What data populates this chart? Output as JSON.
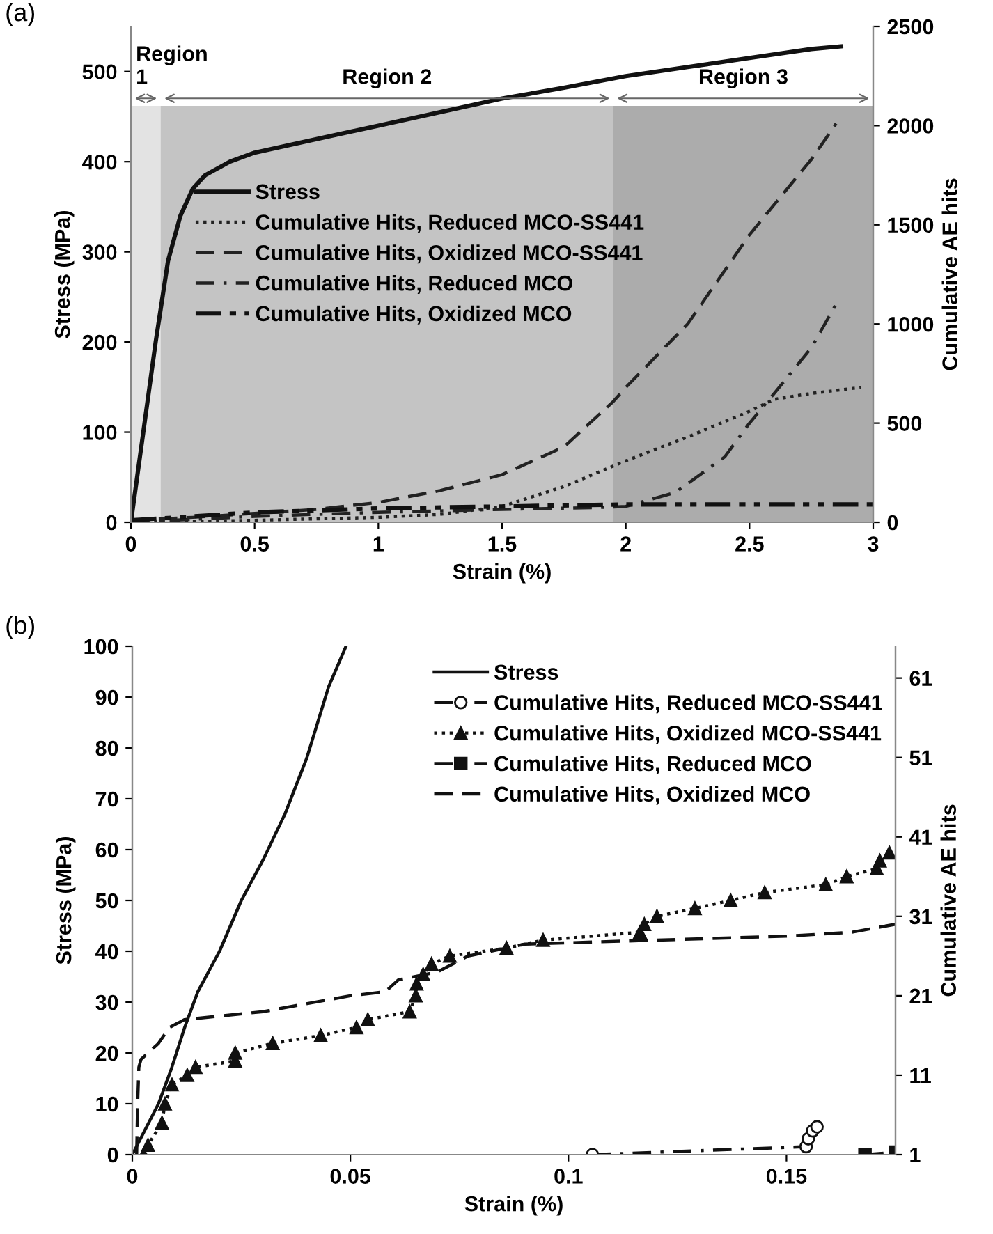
{
  "chart_data": [
    {
      "type": "line",
      "title": "(a)",
      "xlabel": "Strain (%)",
      "ylabel": "Stress (MPa)",
      "y2label": "Cumulative AE hits",
      "xlim": [
        0,
        3
      ],
      "xticks": [
        0,
        0.5,
        1,
        1.5,
        2,
        2.5,
        3
      ],
      "ylim": [
        0,
        550
      ],
      "yticks": [
        0,
        100,
        200,
        300,
        400,
        500
      ],
      "y2lim": [
        0,
        2500
      ],
      "y2ticks": [
        0,
        500,
        1000,
        1500,
        2000,
        2500
      ],
      "grid": false,
      "legend": "center left",
      "bands": [
        {
          "axis": "x",
          "from": 0,
          "to": 0.12,
          "label": "Region\n1",
          "color": "#e3e3e3"
        },
        {
          "axis": "x",
          "from": 0.12,
          "to": 1.95,
          "label": "Region 2",
          "color": "#c4c4c4"
        },
        {
          "axis": "x",
          "from": 1.95,
          "to": 3,
          "label": "Region 3",
          "color": "#acacac"
        }
      ],
      "series": [
        {
          "name": "Stress",
          "color": "#111111",
          "line_style": "solid",
          "marker": "none",
          "x": [
            0,
            0.05,
            0.1,
            0.15,
            0.2,
            0.25,
            0.3,
            0.4,
            0.5,
            0.75,
            1,
            1.25,
            1.5,
            1.75,
            2,
            2.25,
            2.5,
            2.75,
            2.87
          ],
          "values": [
            0,
            100,
            200,
            290,
            340,
            370,
            385,
            400,
            410,
            425,
            440,
            455,
            470,
            482,
            495,
            505,
            515,
            525,
            528
          ]
        },
        {
          "name": "Cumulative Hits, Reduced MCO-SS441",
          "color": "#222222",
          "line_style": "dotted",
          "marker": "none",
          "axis": "y2",
          "x": [
            0,
            0.5,
            1,
            1.25,
            1.5,
            1.75,
            2,
            2.25,
            2.5,
            2.6,
            2.75,
            2.95
          ],
          "values": [
            0,
            10,
            25,
            40,
            80,
            180,
            310,
            430,
            560,
            620,
            650,
            680
          ]
        },
        {
          "name": "Cumulative Hits, Oxidized MCO-SS441",
          "color": "#222222",
          "line_style": "dashed",
          "marker": "none",
          "axis": "y2",
          "x": [
            0,
            0.25,
            0.5,
            0.75,
            1,
            1.25,
            1.5,
            1.75,
            1.95,
            2,
            2.25,
            2.5,
            2.75,
            2.85
          ],
          "values": [
            10,
            25,
            45,
            65,
            100,
            160,
            240,
            380,
            610,
            680,
            1000,
            1450,
            1830,
            2010
          ]
        },
        {
          "name": "Cumulative Hits, Reduced MCO",
          "color": "#222222",
          "line_style": "dashdot",
          "marker": "none",
          "axis": "y2",
          "x": [
            0,
            0.5,
            1,
            1.5,
            1.9,
            2,
            2.2,
            2.4,
            2.5,
            2.6,
            2.75,
            2.85
          ],
          "values": [
            0,
            30,
            50,
            65,
            75,
            80,
            150,
            330,
            500,
            650,
            880,
            1100
          ]
        },
        {
          "name": "Cumulative Hits, Oxidized MCO",
          "color": "#111111",
          "line_style": "dashdotdot",
          "marker": "none",
          "axis": "y2",
          "x": [
            0,
            0.5,
            1,
            1.5,
            2,
            2.5,
            3
          ],
          "values": [
            10,
            50,
            70,
            80,
            90,
            90,
            90
          ]
        }
      ]
    },
    {
      "type": "line",
      "title": "(b)",
      "xlabel": "Strain (%)",
      "ylabel": "Stress (MPa)",
      "y2label": "Cumulative AE hits",
      "xlim": [
        0,
        0.175
      ],
      "xticks": [
        0,
        0.05,
        0.1,
        0.15
      ],
      "ylim": [
        0,
        100
      ],
      "yticks": [
        0,
        10,
        20,
        30,
        40,
        50,
        60,
        70,
        80,
        90,
        100
      ],
      "y2lim": [
        1,
        65
      ],
      "y2ticks": [
        1,
        11,
        21,
        31,
        41,
        51,
        61
      ],
      "grid": false,
      "legend": "upper right",
      "series": [
        {
          "name": "Stress",
          "color": "#111111",
          "line_style": "solid",
          "marker": "none",
          "x": [
            0,
            0.003,
            0.006,
            0.009,
            0.012,
            0.015,
            0.02,
            0.025,
            0.03,
            0.035,
            0.04,
            0.045,
            0.049
          ],
          "values": [
            0,
            5,
            10,
            17,
            25,
            32,
            40,
            50,
            58,
            67,
            78,
            92,
            100
          ]
        },
        {
          "name": "Cumulative Hits, Reduced MCO-SS441",
          "color": "#111111",
          "line_style": "dashdot",
          "marker": "circle",
          "axis": "y2",
          "x": [
            0.1055,
            0.1545,
            0.155,
            0.156,
            0.157
          ],
          "values": [
            1,
            2,
            3,
            4,
            4.5
          ]
        },
        {
          "name": "Cumulative Hits, Oxidized MCO-SS441",
          "color": "#111111",
          "line_style": "dotted",
          "marker": "triangle",
          "axis": "y2",
          "x": [
            0.0026,
            0.0036,
            0.0068,
            0.0075,
            0.0091,
            0.0126,
            0.0145,
            0.0236,
            0.0236,
            0.0322,
            0.0432,
            0.0514,
            0.054,
            0.0636,
            0.065,
            0.0652,
            0.0667,
            0.0686,
            0.0728,
            0.0858,
            0.0942,
            0.1164,
            0.1174,
            0.1203,
            0.129,
            0.1372,
            0.145,
            0.159,
            0.1638,
            0.1707,
            0.1714,
            0.1736
          ],
          "values": [
            1,
            2.2,
            5,
            7.4,
            9.8,
            11,
            12,
            12.8,
            13.8,
            15,
            16,
            17,
            18,
            19,
            21,
            22.5,
            23.7,
            25,
            26,
            27,
            28,
            29,
            30,
            31,
            32,
            33,
            34,
            35,
            36,
            37,
            38,
            39
          ]
        },
        {
          "name": "Cumulative Hits, Reduced MCO",
          "color": "#111111",
          "line_style": "dashdot",
          "marker": "square",
          "axis": "y2",
          "x": [
            0.168,
            0.175
          ],
          "values": [
            1,
            1.3
          ]
        },
        {
          "name": "Cumulative Hits, Oxidized MCO",
          "color": "#111111",
          "line_style": "dashed",
          "marker": "none",
          "axis": "y2",
          "x": [
            0.001,
            0.0012,
            0.0015,
            0.002,
            0.006,
            0.0085,
            0.012,
            0.03,
            0.05,
            0.058,
            0.061,
            0.07,
            0.077,
            0.09,
            0.12,
            0.15,
            0.165,
            0.175
          ],
          "values": [
            1,
            7,
            12,
            13,
            15,
            17,
            18,
            19,
            21,
            21.5,
            23,
            24,
            26,
            27.5,
            28,
            28.5,
            29,
            30
          ]
        }
      ]
    }
  ]
}
